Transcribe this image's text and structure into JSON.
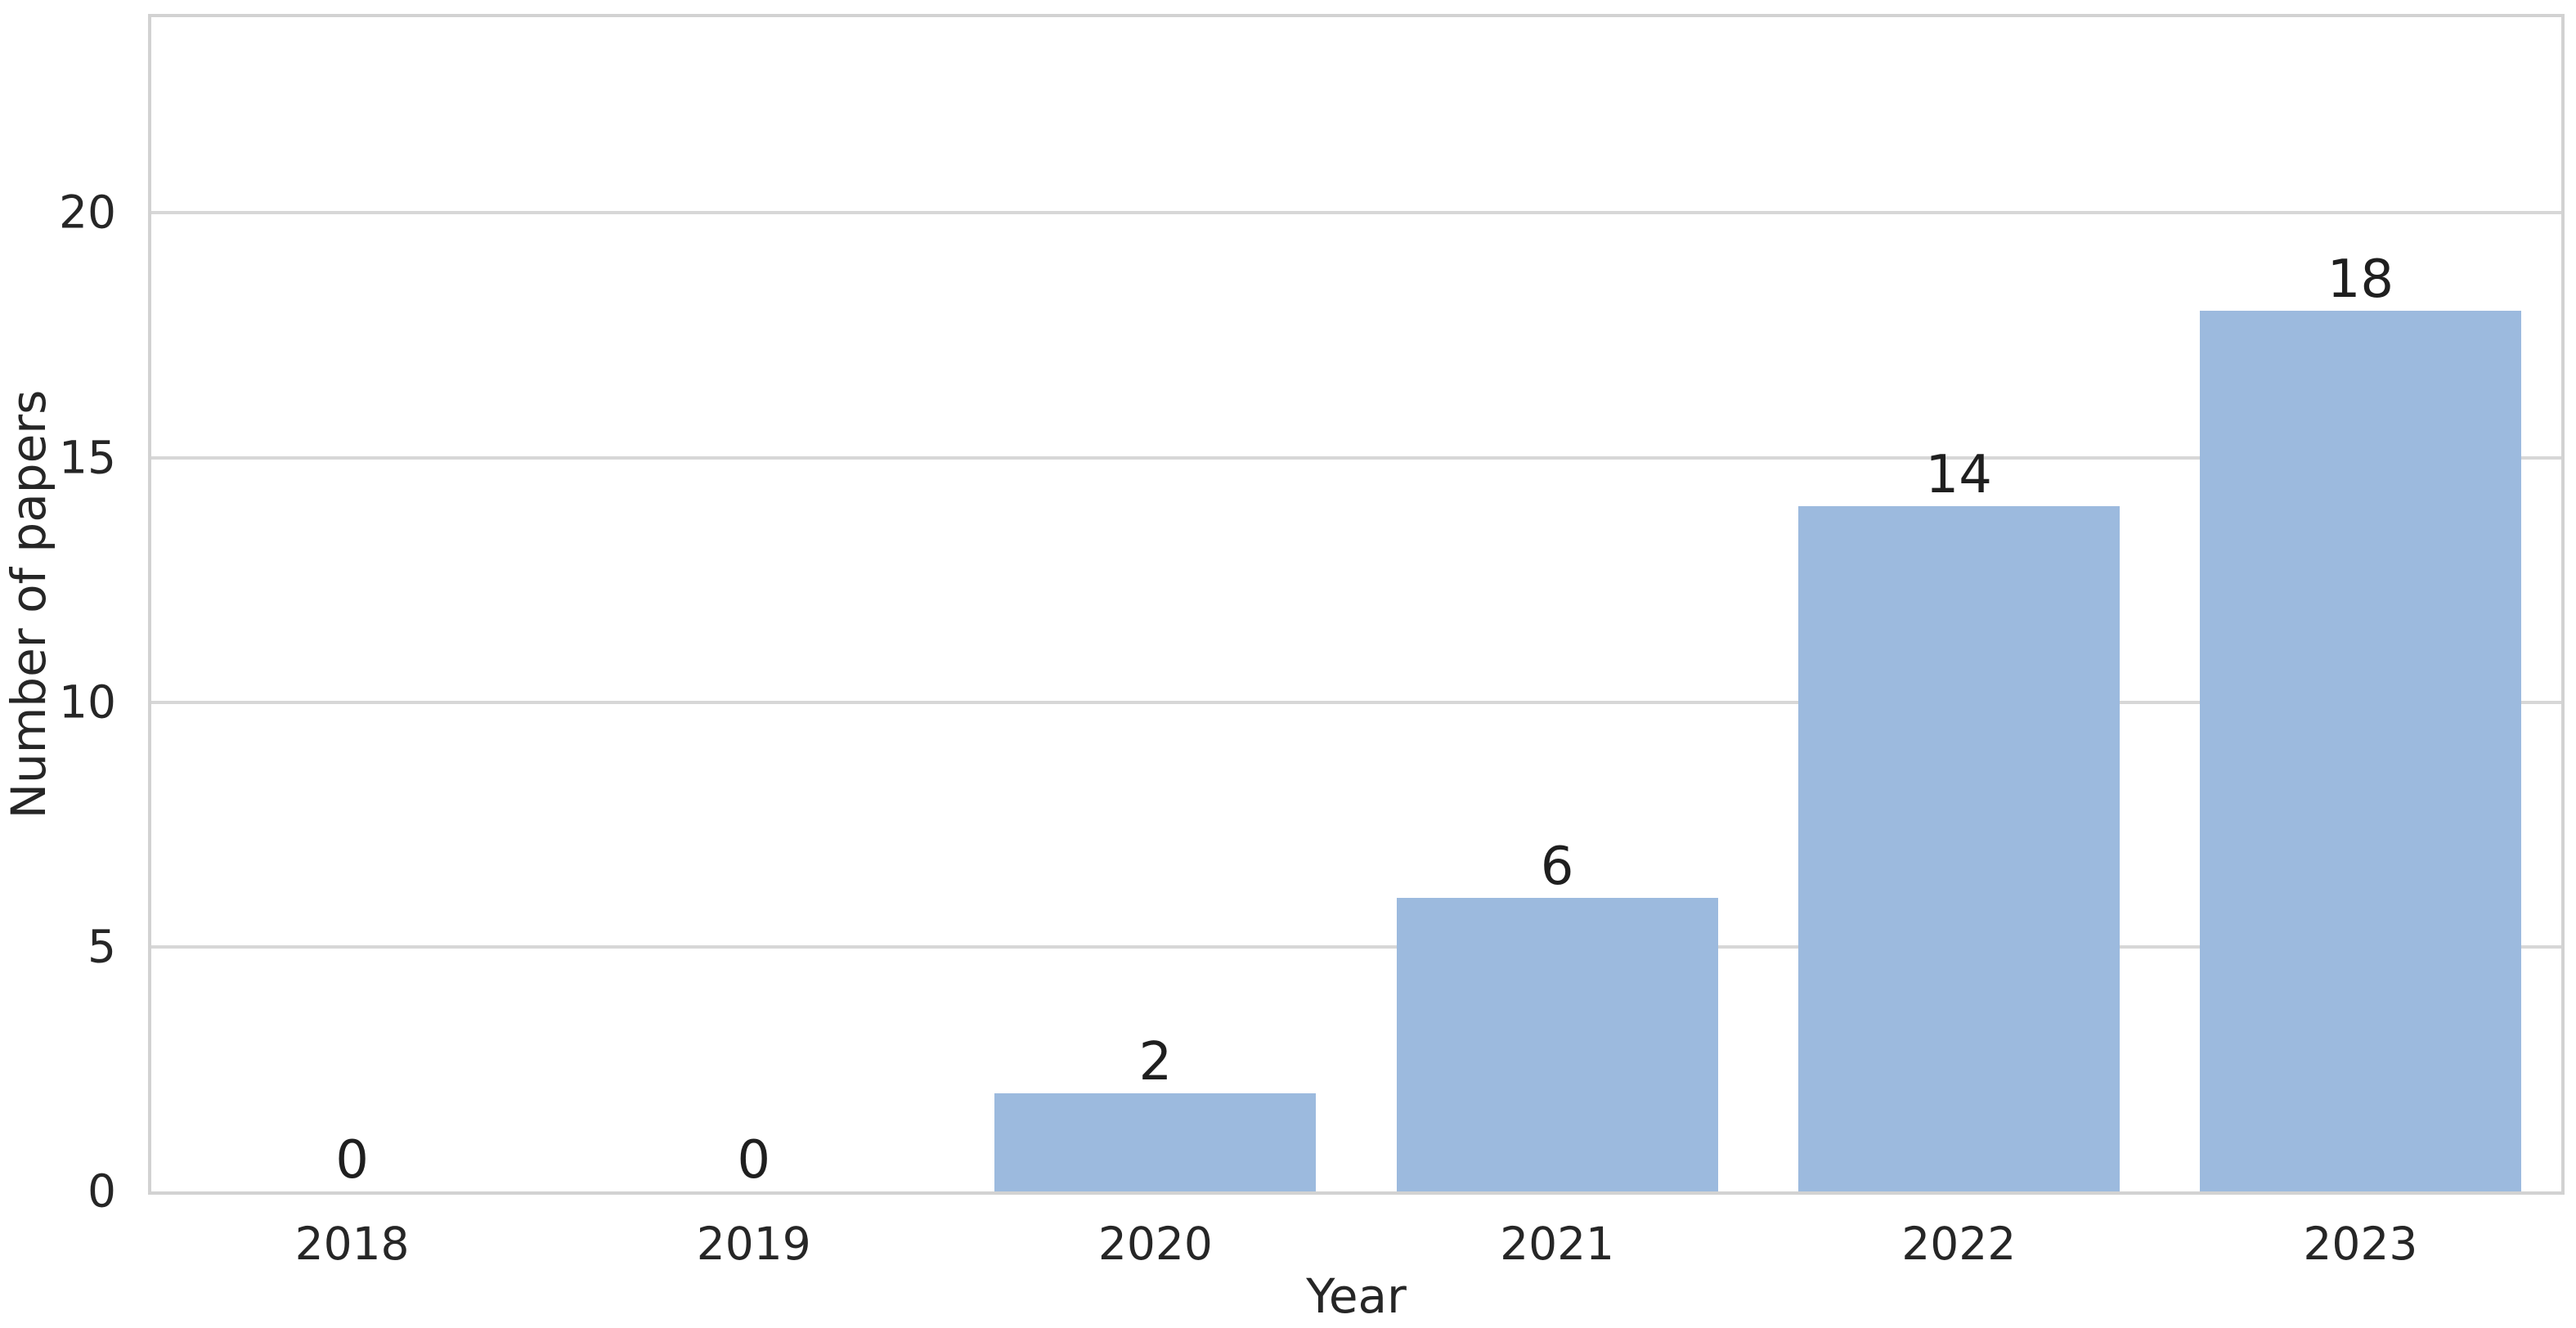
{
  "figure": {
    "background": "#ffffff",
    "plot_background": "#ffffff"
  },
  "chart_data": {
    "type": "bar",
    "title": "",
    "xlabel": "Year",
    "ylabel": "Number of papers",
    "categories": [
      "2018",
      "2019",
      "2020",
      "2021",
      "2022",
      "2023"
    ],
    "values": [
      0,
      0,
      2,
      6,
      14,
      18
    ],
    "bar_labels": [
      "0",
      "0",
      "2",
      "6",
      "14",
      "18"
    ],
    "yticks": [
      0,
      5,
      10,
      15,
      20
    ],
    "ytick_labels": [
      "0",
      "5",
      "10",
      "15",
      "20"
    ],
    "ylim": [
      0,
      24
    ],
    "grid": "horizontal-only",
    "legend": "none",
    "colors": {
      "bar_fill": "#9cbade",
      "grid_line": "#d7d7d7",
      "axis_spine": "#d2d2d2",
      "tick_text": "#262626",
      "bar_label_text": "#1f1f1f"
    }
  }
}
